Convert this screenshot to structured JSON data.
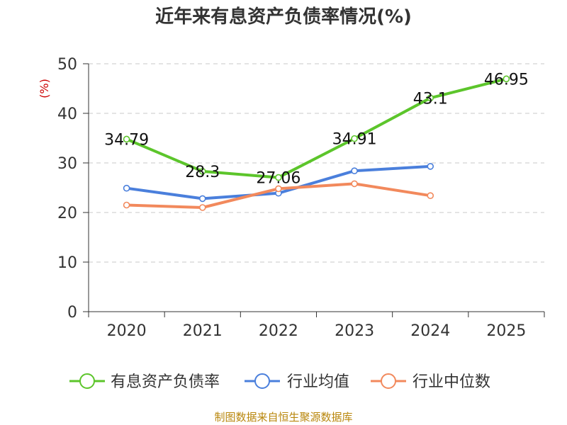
{
  "title": "近年来有息资产负债率情况(%)",
  "source": "制图数据来自恒生聚源数据库",
  "chart_data": {
    "type": "line",
    "title": "近年来有息资产负债率情况(%)",
    "ylabel": "(%)",
    "ylim": [
      0,
      50
    ],
    "yticks": [
      0,
      10,
      20,
      30,
      40,
      50
    ],
    "grid": "horizontal dashed",
    "legend_position": "bottom",
    "categories": [
      "2020",
      "2021",
      "2022",
      "2023",
      "2024",
      "2025"
    ],
    "series": [
      {
        "name": "有息资产负债率",
        "color": "#5cc52b",
        "values": [
          34.79,
          28.3,
          27.06,
          34.91,
          43.1,
          46.95
        ],
        "labels": [
          "34.79",
          "28.3",
          "27.06",
          "34.91",
          "43.1",
          "46.95"
        ],
        "show_labels": true
      },
      {
        "name": "行业均值",
        "color": "#4a7fdc",
        "values": [
          24.9,
          22.8,
          23.9,
          28.4,
          29.3,
          null
        ],
        "show_labels": false
      },
      {
        "name": "行业中位数",
        "color": "#f2895c",
        "values": [
          21.5,
          21.0,
          24.8,
          25.8,
          23.4,
          null
        ],
        "show_labels": false
      }
    ]
  }
}
